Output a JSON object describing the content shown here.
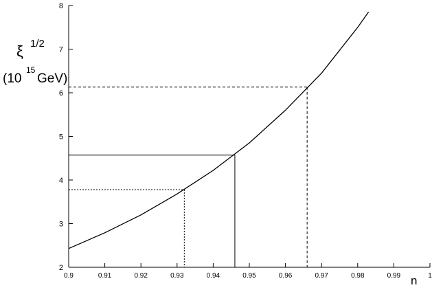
{
  "chart_data": {
    "type": "line",
    "y_label": {
      "symbol": "ξ",
      "exponent": "1/2",
      "unit_open": "(10",
      "unit_exponent": "15",
      "unit_close": "GeV)"
    },
    "x_label": "n",
    "x": [
      0.9,
      0.91,
      0.92,
      0.93,
      0.94,
      0.95,
      0.96,
      0.97,
      0.98,
      0.983
    ],
    "series": [
      {
        "color": "#000000",
        "values": [
          2.43,
          2.79,
          3.2,
          3.68,
          4.22,
          4.85,
          5.6,
          6.45,
          7.5,
          7.85
        ]
      }
    ],
    "reference_points": [
      {
        "x": 0.932,
        "y": 3.78,
        "style": "dotted"
      },
      {
        "x": 0.946,
        "y": 4.57,
        "style": "solid"
      },
      {
        "x": 0.966,
        "y": 6.13,
        "style": "dashed"
      }
    ],
    "xlim": [
      0.9,
      1
    ],
    "ylim": [
      2,
      8
    ],
    "xticks": [
      0.9,
      0.91,
      0.92,
      0.93,
      0.94,
      0.95,
      0.96,
      0.97,
      0.98,
      0.99,
      1
    ],
    "yticks": [
      2,
      3,
      4,
      5,
      6,
      7,
      8
    ]
  }
}
